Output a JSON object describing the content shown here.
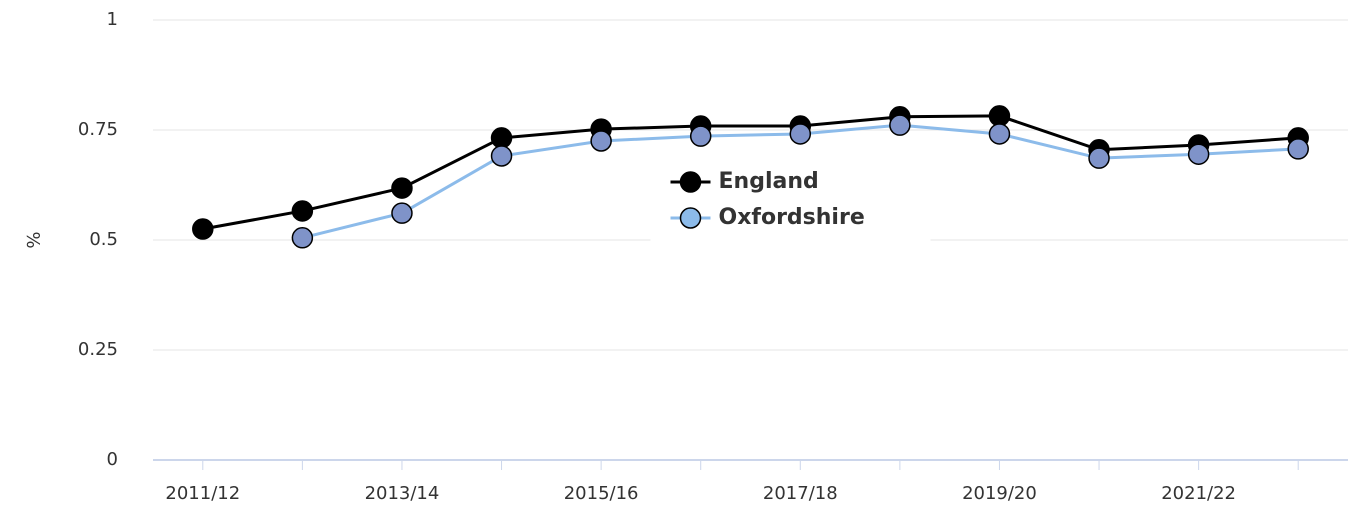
{
  "chart_data": {
    "type": "line",
    "y_label": "%",
    "categories": [
      "2011/12",
      null,
      "2013/14",
      null,
      "2015/16",
      null,
      "2017/18",
      null,
      "2019/20",
      null,
      "2021/22",
      null
    ],
    "series": [
      {
        "name": "England",
        "color": "#000000",
        "marker_color": "#000000",
        "values": [
          0.525,
          0.566,
          0.618,
          0.732,
          0.752,
          0.759,
          0.759,
          0.78,
          0.782,
          0.705,
          0.716,
          0.732
        ]
      },
      {
        "name": "Oxfordshire",
        "color": "#8cbbea",
        "marker_color": "#7f93c9",
        "values": [
          null,
          0.505,
          0.561,
          0.691,
          0.725,
          0.736,
          0.741,
          0.761,
          0.741,
          0.686,
          0.695,
          0.707
        ]
      }
    ],
    "ylim": [
      0,
      1
    ],
    "yticks": [
      0,
      0.25,
      0.5,
      0.75,
      1
    ],
    "grid": true,
    "legend": "center"
  }
}
